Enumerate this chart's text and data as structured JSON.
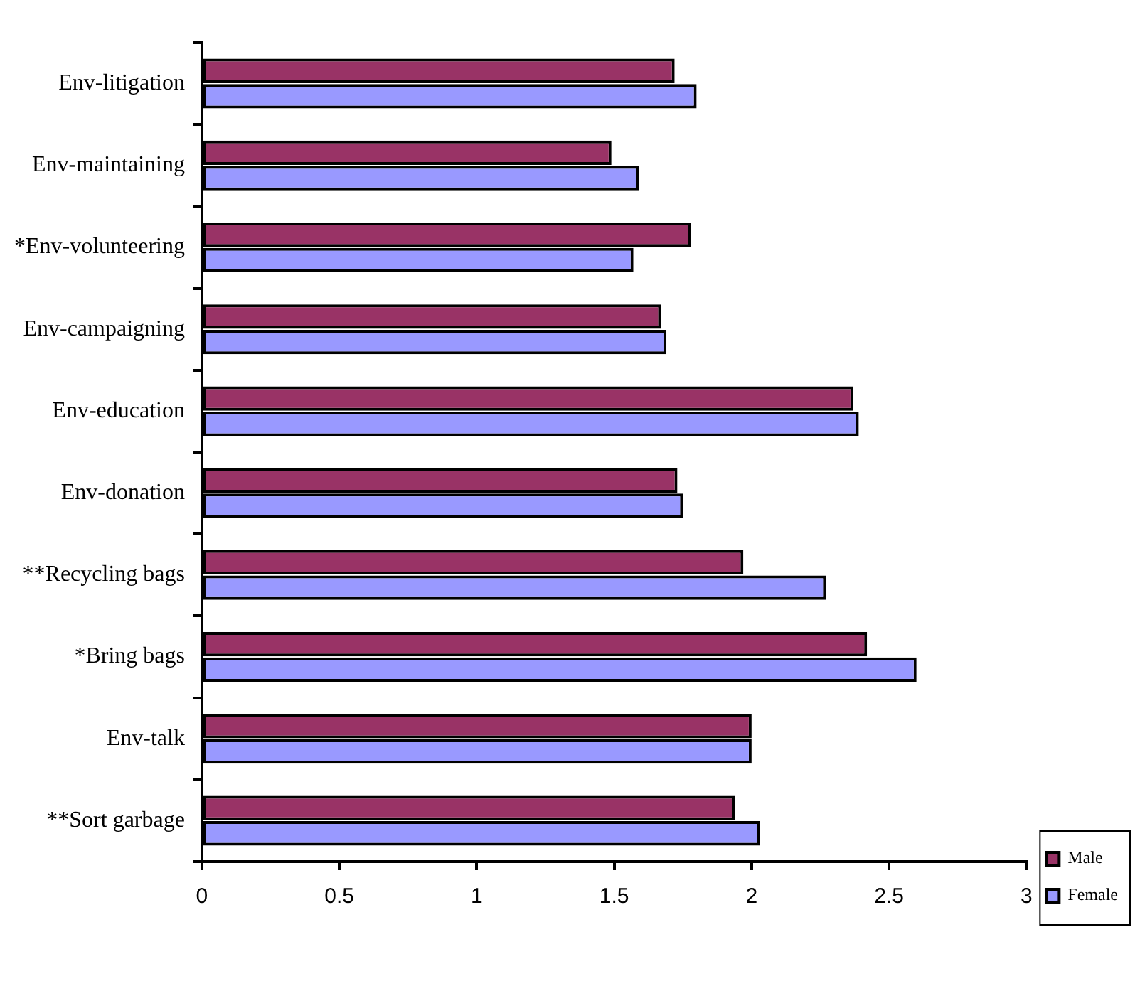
{
  "chart_data": {
    "type": "bar",
    "orientation": "horizontal",
    "categories": [
      "Env-litigation",
      "Env-maintaining",
      "*Env-volunteering",
      "Env-campaigning",
      "Env-education",
      "Env-donation",
      "**Recycling bags",
      "*Bring bags",
      "Env-talk",
      "**Sort garbage"
    ],
    "series": [
      {
        "name": "Male",
        "color": "#993366",
        "values": [
          1.72,
          1.49,
          1.78,
          1.67,
          2.37,
          1.73,
          1.97,
          2.42,
          2.0,
          1.94
        ]
      },
      {
        "name": "Female",
        "color": "#9999ff",
        "values": [
          1.8,
          1.59,
          1.57,
          1.69,
          2.39,
          1.75,
          2.27,
          2.6,
          2.0,
          2.03
        ]
      }
    ],
    "xlim": [
      0,
      3
    ],
    "xticks": [
      0,
      0.5,
      1,
      1.5,
      2,
      2.5,
      3
    ],
    "legend": "bottom right"
  }
}
